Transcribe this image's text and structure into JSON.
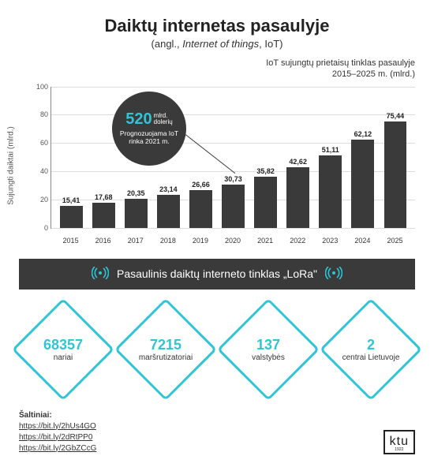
{
  "title": "Daiktų internetas pasaulyje",
  "subtitle_prefix": "(angl., ",
  "subtitle_italic": "Internet of things",
  "subtitle_suffix": ", IoT)",
  "chart_desc_l1": "IoT sujungtų prietaisų tinklas pasaulyje",
  "chart_desc_l2": "2015–2025 m. (mlrd.)",
  "y_axis_label": "Sujungti daiktai (mlrd.)",
  "chart": {
    "type": "bar",
    "ylim": [
      0,
      100
    ],
    "ytick_step": 20,
    "bar_color": "#3a3a3a",
    "grid_color": "#dddddd",
    "categories": [
      "2015",
      "2016",
      "2017",
      "2018",
      "2019",
      "2020",
      "2021",
      "2022",
      "2023",
      "2024",
      "2025"
    ],
    "values": [
      15.41,
      17.68,
      20.35,
      23.14,
      26.66,
      30.73,
      35.82,
      42.62,
      51.11,
      62.12,
      75.44
    ],
    "labels": [
      "15,41",
      "17,68",
      "20,35",
      "23,14",
      "26,66",
      "30,73",
      "35,82",
      "42,62",
      "51,11",
      "62,12",
      "75,44"
    ]
  },
  "callout": {
    "value": "520",
    "unit_l1": "mlrd.",
    "unit_l2": "dolerių",
    "desc": "Prognozuojama IoT rinka 2021 m.",
    "bg": "#3a3a3a",
    "value_color": "#2ec6d6"
  },
  "band_text": "Pasaulinis daiktų interneto tinklas „LoRa\"",
  "band_icon_color": "#2ec6d6",
  "stats": [
    {
      "num": "68357",
      "label": "nariai"
    },
    {
      "num": "7215",
      "label": "maršrutizatoriai"
    },
    {
      "num": "137",
      "label": "valstybės"
    },
    {
      "num": "2",
      "label": "centrai Lietuvoje"
    }
  ],
  "diamond_border_color": "#2ec6d6",
  "sources_heading": "Šaltiniai:",
  "sources": [
    "https://bit.ly/2hUs4GO",
    "https://bit.ly/2dRtPP0",
    "https://bit.ly/2GbZCcG"
  ],
  "logo_text": "ktu",
  "logo_year": "1922"
}
